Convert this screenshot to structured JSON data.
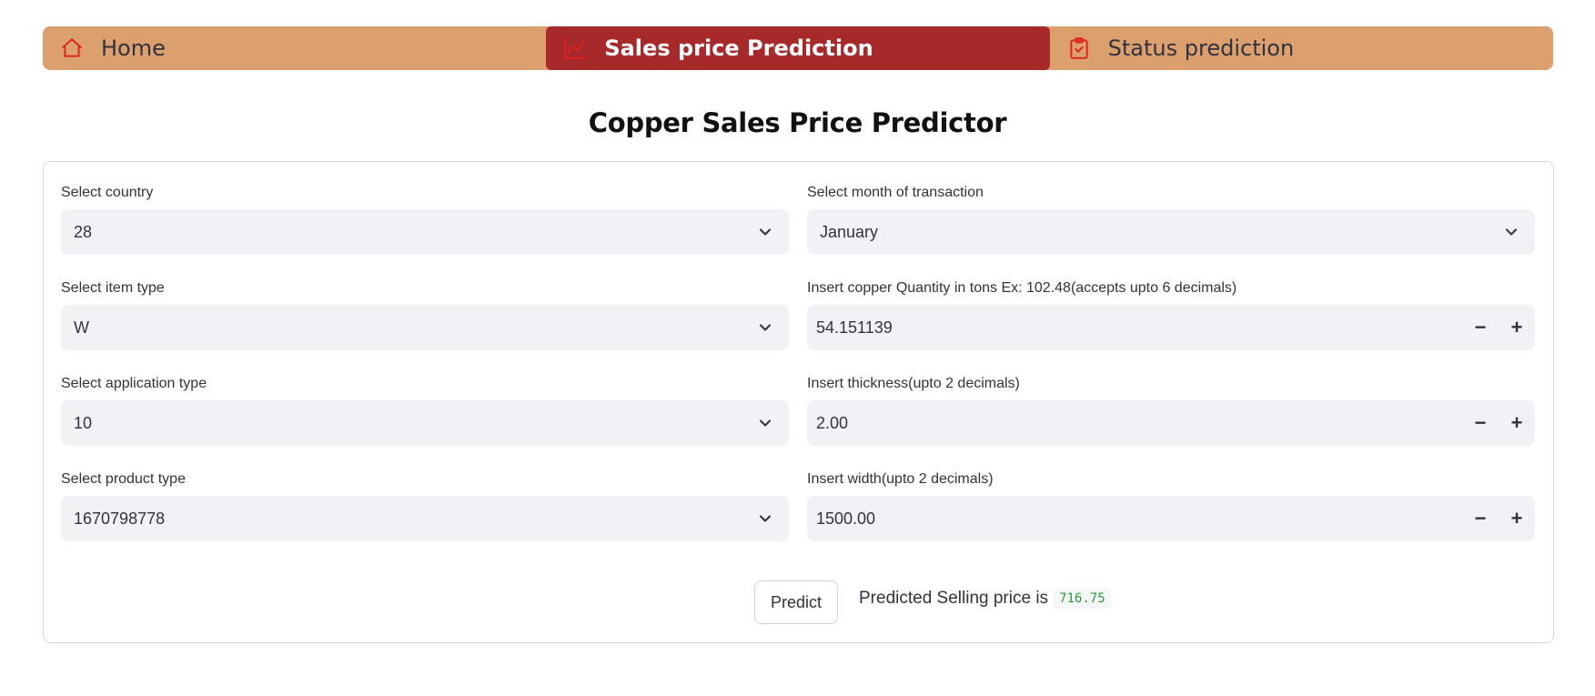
{
  "nav": {
    "items": [
      {
        "label": "Home",
        "icon": "home-icon",
        "active": false
      },
      {
        "label": "Sales price Prediction",
        "icon": "chart-line-icon",
        "active": true
      },
      {
        "label": "Status prediction",
        "icon": "clipboard-check-icon",
        "active": false
      }
    ],
    "colors": {
      "bar": "#dba06d",
      "active": "#a8292a",
      "icon": "#e0201c"
    }
  },
  "title": "Copper Sales Price Predictor",
  "form": {
    "country": {
      "label": "Select country",
      "value": "28"
    },
    "item_type": {
      "label": "Select item type",
      "value": "W"
    },
    "application_type": {
      "label": "Select application type",
      "value": "10"
    },
    "product_type": {
      "label": "Select product type",
      "value": "1670798778"
    },
    "month": {
      "label": "Select month of transaction",
      "value": "January"
    },
    "quantity": {
      "label": "Insert copper Quantity in tons Ex: 102.48(accepts upto 6 decimals)",
      "value": "54.151139"
    },
    "thickness": {
      "label": "Insert thickness(upto 2 decimals)",
      "value": "2.00"
    },
    "width": {
      "label": "Insert width(upto 2 decimals)",
      "value": "1500.00"
    },
    "stepper": {
      "minus": "−",
      "plus": "+"
    }
  },
  "predict": {
    "button_label": "Predict",
    "result_text": "Predicted Selling price is",
    "result_value": "716.75"
  }
}
